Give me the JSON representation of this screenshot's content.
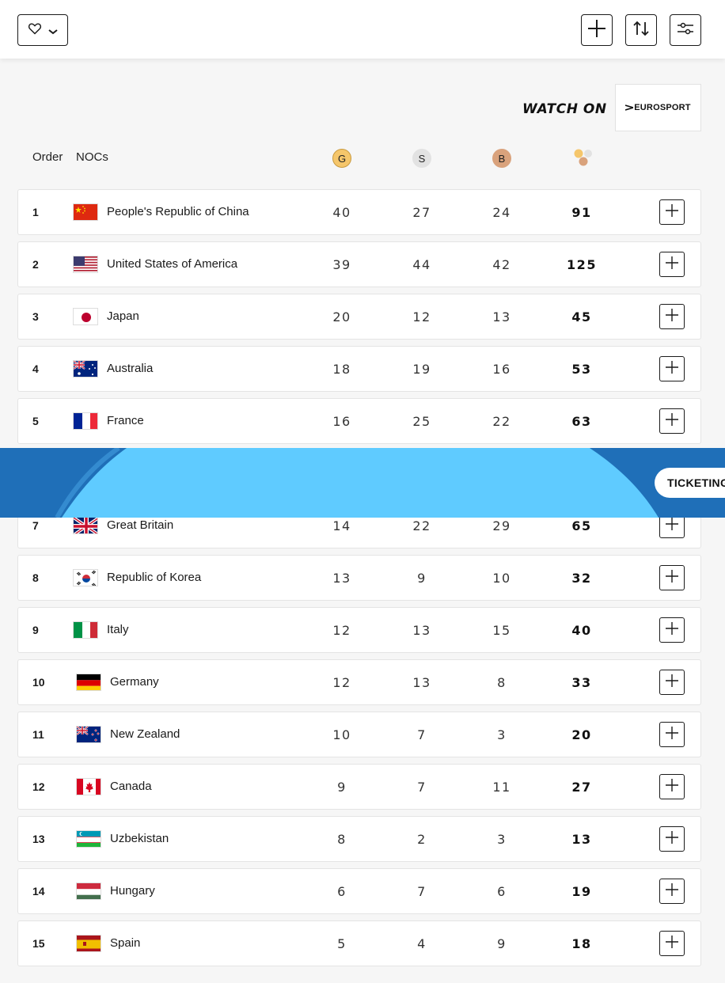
{
  "header": {
    "icons": [
      "heart-icon",
      "chevron-down-icon",
      "plus-icon",
      "sort-icon",
      "filter-icon"
    ]
  },
  "sponsor": {
    "watch_label": "WATCH ON",
    "brand": "EUROSPORT"
  },
  "table": {
    "headers": {
      "order": "Order",
      "nocs": "NOCs",
      "gold": "G",
      "silver": "S",
      "bronze": "B"
    },
    "rows": [
      {
        "rank": "1",
        "name": "People's Republic of China",
        "gold": "40",
        "silver": "27",
        "bronze": "24",
        "total": "91"
      },
      {
        "rank": "2",
        "name": "United States of America",
        "gold": "39",
        "silver": "44",
        "bronze": "42",
        "total": "125"
      },
      {
        "rank": "3",
        "name": "Japan",
        "gold": "20",
        "silver": "12",
        "bronze": "13",
        "total": "45"
      },
      {
        "rank": "4",
        "name": "Australia",
        "gold": "18",
        "silver": "19",
        "bronze": "16",
        "total": "53"
      },
      {
        "rank": "5",
        "name": "France",
        "gold": "16",
        "silver": "25",
        "bronze": "22",
        "total": "63"
      },
      {
        "rank": "7",
        "name": "Great Britain",
        "gold": "14",
        "silver": "22",
        "bronze": "29",
        "total": "65"
      },
      {
        "rank": "8",
        "name": "Republic of Korea",
        "gold": "13",
        "silver": "9",
        "bronze": "10",
        "total": "32"
      },
      {
        "rank": "9",
        "name": "Italy",
        "gold": "12",
        "silver": "13",
        "bronze": "15",
        "total": "40"
      },
      {
        "rank": "10",
        "name": "Germany",
        "gold": "12",
        "silver": "13",
        "bronze": "8",
        "total": "33"
      },
      {
        "rank": "11",
        "name": "New Zealand",
        "gold": "10",
        "silver": "7",
        "bronze": "3",
        "total": "20"
      },
      {
        "rank": "12",
        "name": "Canada",
        "gold": "9",
        "silver": "7",
        "bronze": "11",
        "total": "27"
      },
      {
        "rank": "13",
        "name": "Uzbekistan",
        "gold": "8",
        "silver": "2",
        "bronze": "3",
        "total": "13"
      },
      {
        "rank": "14",
        "name": "Hungary",
        "gold": "6",
        "silver": "7",
        "bronze": "6",
        "total": "19"
      },
      {
        "rank": "15",
        "name": "Spain",
        "gold": "5",
        "silver": "4",
        "bronze": "9",
        "total": "18"
      }
    ]
  },
  "banner": {
    "ticketing_label": "TICKETING"
  },
  "colors": {
    "gold": "#f5c66b",
    "silver": "#e2e2e2",
    "bronze": "#d9a27c",
    "banner_dark": "#1f6fb8",
    "banner_light": "#5fcbff"
  }
}
